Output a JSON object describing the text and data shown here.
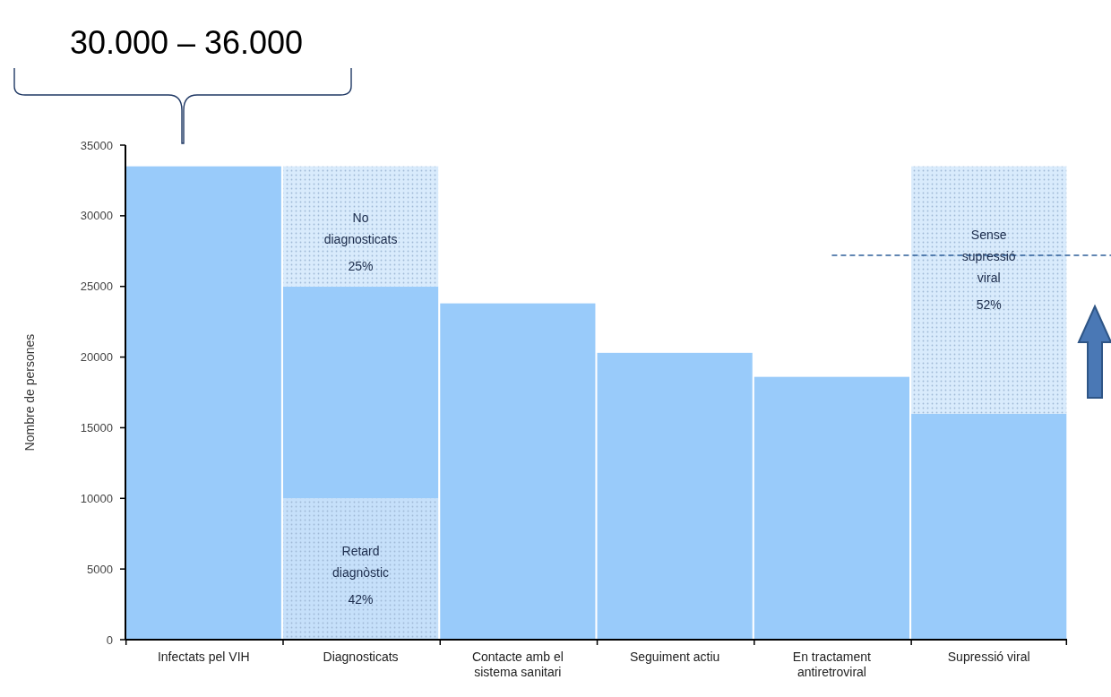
{
  "chart_data": {
    "type": "bar",
    "stacked": true,
    "ylabel": "Nombre de persones",
    "categories": [
      "Infectats pel VIH",
      "Diagnosticats",
      "Contacte amb el sistema sanitari",
      "Seguiment actiu",
      "En tractament antiretroviral",
      "Supressió viral"
    ],
    "series": [
      {
        "color": "#c6e0fa",
        "values": [
          null,
          10000,
          null,
          null,
          null,
          null
        ]
      },
      {
        "color": "#99cbfa",
        "values": [
          33500,
          15000,
          23800,
          20300,
          18600,
          16000
        ]
      },
      {
        "color": "#d9ebfc",
        "values": [
          null,
          8500,
          null,
          null,
          null,
          17500
        ]
      }
    ],
    "ylim": [
      0,
      35000
    ],
    "yticks": [
      0,
      5000,
      10000,
      15000,
      20000,
      25000,
      30000,
      35000
    ],
    "grid": false,
    "ref_lines": [
      {
        "axis": "y",
        "value": 27200,
        "color": "#2e5f99",
        "line_style": "dashed"
      }
    ],
    "annotations": [
      "30.000 – 36.000",
      "No\ndiagnosticats\n25%",
      "Retard\ndiagnòstic\n42%",
      "Sense\nsupressió\nviral\n52%"
    ]
  }
}
